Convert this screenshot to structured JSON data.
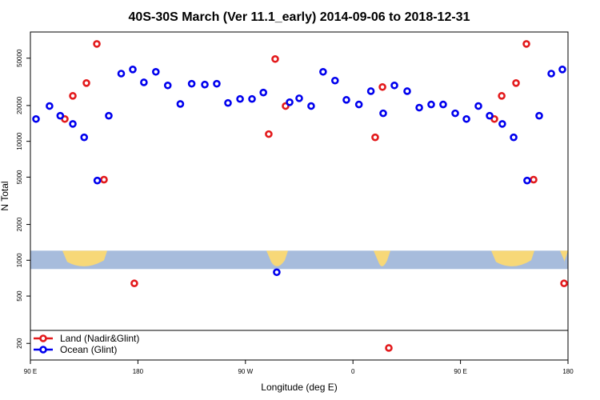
{
  "chart_data": {
    "type": "scatter",
    "title": "40S-30S March (Ver 11.1_early)   2014-09-06 to 2018-12-31",
    "x_label": "Longitude (deg E)",
    "y_label": "N Total",
    "log_y": true,
    "legend": "lower left",
    "xlim": [
      90,
      540
    ],
    "ylim": [
      145,
      83000
    ],
    "xticks": [
      {
        "value": 90,
        "label": "90 E"
      },
      {
        "value": 180,
        "label": "180"
      },
      {
        "value": 270,
        "label": "90 W"
      },
      {
        "value": 360,
        "label": "0"
      },
      {
        "value": 450,
        "label": "90 E"
      },
      {
        "value": 540,
        "label": "180"
      }
    ],
    "yticks": [
      200,
      500,
      1000,
      2000,
      5000,
      10000,
      20000,
      50000
    ],
    "series": [
      {
        "name": "Land (Nadir&Glint)",
        "color": "#e31a1c",
        "x": [
          118.8,
          125.5,
          136.9,
          145.6,
          151.6,
          177,
          289.5,
          294.9,
          303.6,
          378.6,
          384.7,
          390,
          478.4,
          484.5,
          496.5,
          505.2,
          511.2,
          536.7
        ],
        "values": [
          15400,
          24100,
          30900,
          65900,
          4760,
          639,
          11500,
          49200,
          19800,
          10800,
          28600,
          183,
          15400,
          24100,
          30900,
          65900,
          4760,
          639
        ]
      },
      {
        "name": "Ocean (Glint)",
        "color": "#0000ee",
        "x": [
          94.7,
          106,
          115,
          125.5,
          135,
          146,
          155.6,
          166,
          175.7,
          185,
          195,
          205,
          215.5,
          225,
          236,
          246,
          255.4,
          265.5,
          275.5,
          285,
          296.2,
          307,
          315,
          325,
          335,
          345,
          354.5,
          365,
          375,
          385.3,
          394.7,
          405.4,
          415.5,
          425.5,
          435.5,
          445.6,
          455,
          465,
          474.4,
          485,
          494.5,
          505.8,
          515.9,
          526,
          535.3
        ],
        "values": [
          15400,
          19800,
          16400,
          14000,
          10800,
          4680,
          16400,
          37100,
          40200,
          31300,
          38400,
          29500,
          20600,
          30500,
          30000,
          30500,
          21000,
          22700,
          22700,
          25700,
          793,
          21300,
          23000,
          19800,
          38400,
          32400,
          22300,
          20400,
          26400,
          17200,
          29500,
          26400,
          19200,
          20400,
          20400,
          17200,
          15400,
          19800,
          16400,
          14000,
          10800,
          4680,
          16400,
          37100,
          40200
        ]
      }
    ]
  }
}
